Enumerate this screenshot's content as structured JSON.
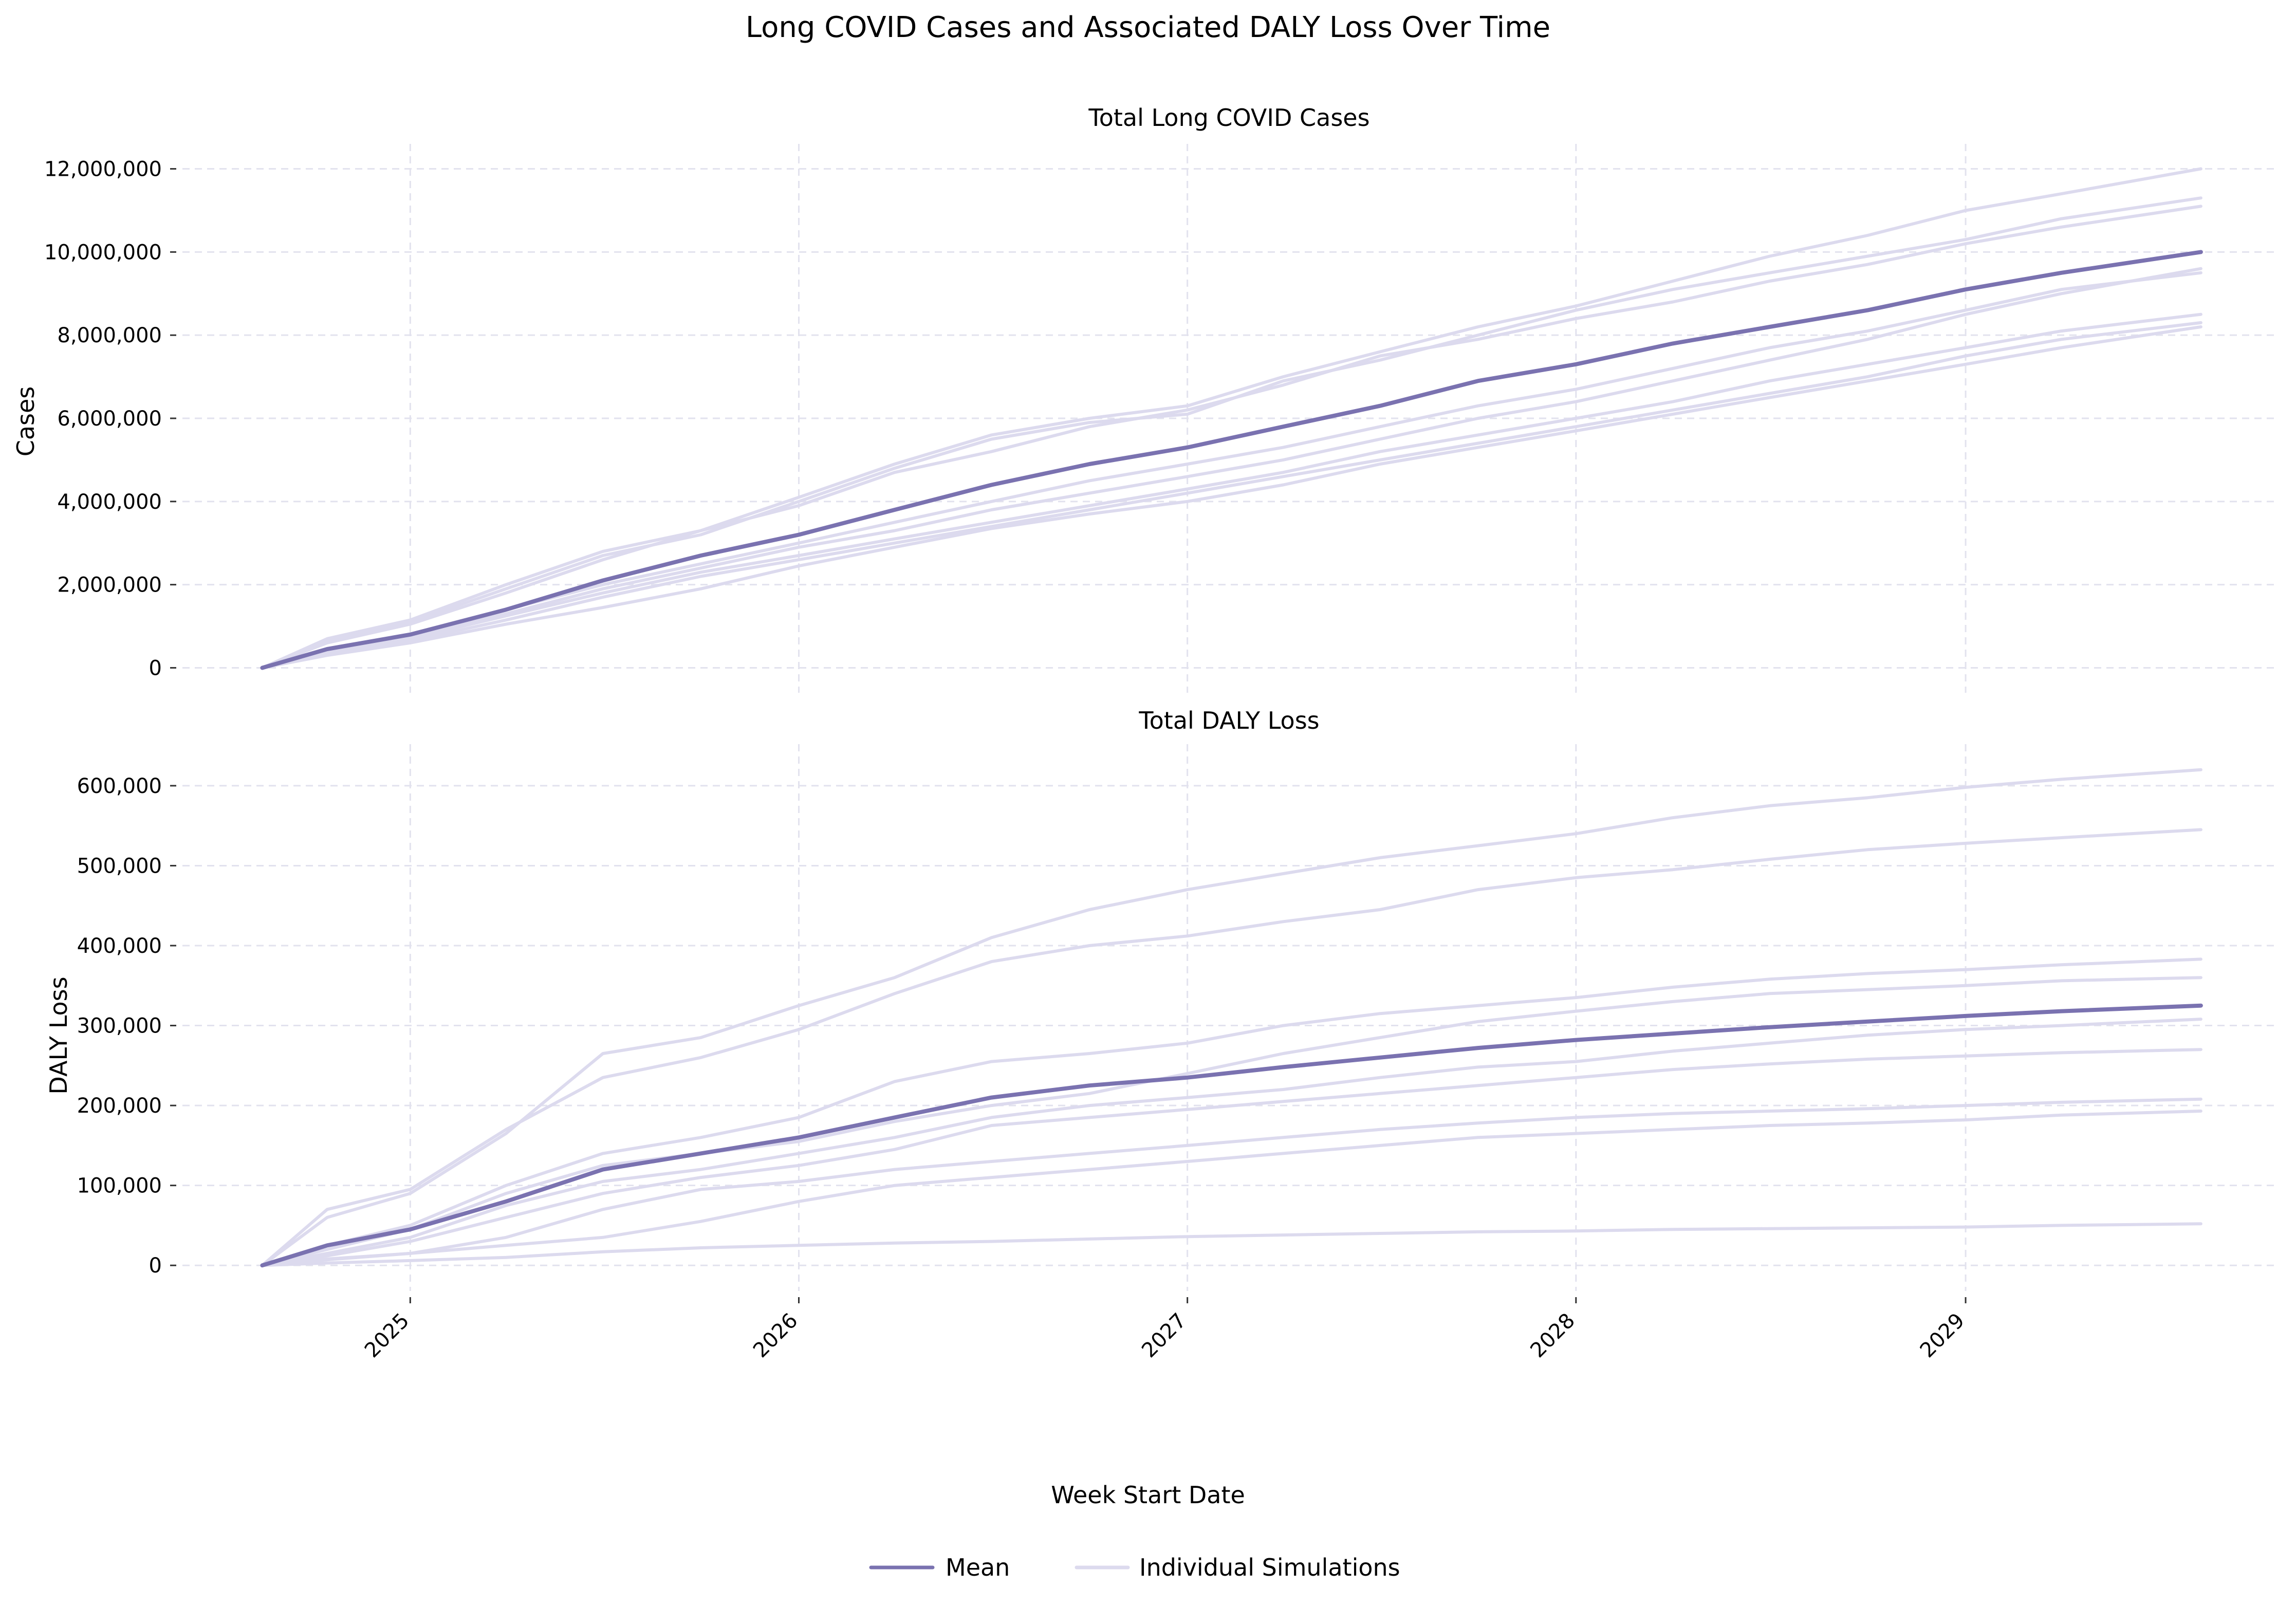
{
  "figure": {
    "title": "Long COVID Cases and Associated DALY Loss Over Time",
    "xlabel": "Week Start Date"
  },
  "colors": {
    "mean": "#7a72b0",
    "simulation": "#dcdaee"
  },
  "legend": {
    "position": "bottom-center",
    "items": [
      "Mean",
      "Individual Simulations"
    ]
  },
  "chart_data": [
    {
      "type": "line",
      "title": "Total Long COVID Cases",
      "ylabel": "Cases",
      "xlim": [
        "2024-06-01",
        "2029-10-20"
      ],
      "ylim": [
        -600000,
        12600000
      ],
      "x_ticks": [
        "2025-01-01",
        "2026-01-01",
        "2027-01-01",
        "2028-01-01",
        "2029-01-01"
      ],
      "x_tick_labels": [
        "2025",
        "2026",
        "2027",
        "2028",
        "2029"
      ],
      "y_ticks": [
        0,
        2000000,
        4000000,
        6000000,
        8000000,
        10000000,
        12000000
      ],
      "y_tick_labels": [
        "0",
        "2,000,000",
        "4,000,000",
        "6,000,000",
        "8,000,000",
        "10,000,000",
        "12,000,000"
      ],
      "grid": true,
      "x": [
        "2024-08-15",
        "2024-10-15",
        "2025-01-01",
        "2025-04-01",
        "2025-07-01",
        "2025-10-01",
        "2026-01-01",
        "2026-04-01",
        "2026-07-01",
        "2026-10-01",
        "2027-01-01",
        "2027-04-01",
        "2027-07-01",
        "2027-10-01",
        "2028-01-01",
        "2028-04-01",
        "2028-07-01",
        "2028-10-01",
        "2029-01-01",
        "2029-04-01",
        "2029-08-10"
      ],
      "series": [
        {
          "name": "Mean",
          "role": "mean",
          "values": [
            0,
            450000,
            800000,
            1400000,
            2100000,
            2700000,
            3200000,
            3800000,
            4400000,
            4900000,
            5300000,
            5800000,
            6300000,
            6900000,
            7300000,
            7800000,
            8200000,
            8600000,
            9100000,
            9500000,
            10000000
          ]
        },
        {
          "role": "simulation",
          "values": [
            0,
            650000,
            1100000,
            1900000,
            2700000,
            3200000,
            4000000,
            4800000,
            5500000,
            5900000,
            6100000,
            6900000,
            7400000,
            8000000,
            8600000,
            9100000,
            9500000,
            9900000,
            10300000,
            10800000,
            11300000
          ]
        },
        {
          "role": "simulation",
          "values": [
            0,
            700000,
            1150000,
            2000000,
            2800000,
            3300000,
            4100000,
            4900000,
            5600000,
            6000000,
            6300000,
            7000000,
            7600000,
            8200000,
            8700000,
            9300000,
            9900000,
            10400000,
            11000000,
            11400000,
            12000000
          ]
        },
        {
          "role": "simulation",
          "values": [
            0,
            600000,
            1050000,
            1800000,
            2600000,
            3300000,
            3900000,
            4700000,
            5200000,
            5800000,
            6200000,
            6800000,
            7500000,
            7900000,
            8400000,
            8800000,
            9300000,
            9700000,
            10200000,
            10600000,
            11100000
          ]
        },
        {
          "role": "simulation",
          "values": [
            0,
            400000,
            750000,
            1300000,
            1900000,
            2400000,
            2900000,
            3300000,
            3800000,
            4200000,
            4600000,
            5000000,
            5500000,
            6000000,
            6400000,
            6900000,
            7400000,
            7900000,
            8500000,
            9000000,
            9600000
          ]
        },
        {
          "role": "simulation",
          "values": [
            0,
            420000,
            800000,
            1400000,
            2000000,
            2500000,
            3000000,
            3500000,
            4000000,
            4500000,
            4900000,
            5300000,
            5800000,
            6300000,
            6700000,
            7200000,
            7700000,
            8100000,
            8600000,
            9100000,
            9500000
          ]
        },
        {
          "role": "simulation",
          "values": [
            0,
            360000,
            700000,
            1250000,
            1800000,
            2300000,
            2700000,
            3100000,
            3500000,
            3900000,
            4300000,
            4700000,
            5200000,
            5600000,
            6000000,
            6400000,
            6900000,
            7300000,
            7700000,
            8100000,
            8500000
          ]
        },
        {
          "role": "simulation",
          "values": [
            0,
            340000,
            650000,
            1150000,
            1700000,
            2200000,
            2600000,
            3000000,
            3400000,
            3800000,
            4200000,
            4600000,
            5000000,
            5400000,
            5800000,
            6200000,
            6600000,
            7000000,
            7500000,
            7900000,
            8300000
          ]
        },
        {
          "role": "simulation",
          "values": [
            0,
            300000,
            600000,
            1050000,
            1450000,
            1900000,
            2450000,
            2900000,
            3350000,
            3700000,
            4000000,
            4400000,
            4900000,
            5300000,
            5700000,
            6100000,
            6500000,
            6900000,
            7300000,
            7700000,
            8200000
          ]
        }
      ]
    },
    {
      "type": "line",
      "title": "Total DALY Loss",
      "ylabel": "DALY Loss",
      "xlim": [
        "2024-06-01",
        "2029-10-20"
      ],
      "ylim": [
        -32000,
        652000
      ],
      "x_ticks": [
        "2025-01-01",
        "2026-01-01",
        "2027-01-01",
        "2028-01-01",
        "2029-01-01"
      ],
      "x_tick_labels": [
        "2025",
        "2026",
        "2027",
        "2028",
        "2029"
      ],
      "y_ticks": [
        0,
        100000,
        200000,
        300000,
        400000,
        500000,
        600000
      ],
      "y_tick_labels": [
        "0",
        "100,000",
        "200,000",
        "300,000",
        "400,000",
        "500,000",
        "600,000"
      ],
      "grid": true,
      "x": [
        "2024-08-15",
        "2024-10-15",
        "2025-01-01",
        "2025-04-01",
        "2025-07-01",
        "2025-10-01",
        "2026-01-01",
        "2026-04-01",
        "2026-07-01",
        "2026-10-01",
        "2027-01-01",
        "2027-04-01",
        "2027-07-01",
        "2027-10-01",
        "2028-01-01",
        "2028-04-01",
        "2028-07-01",
        "2028-10-01",
        "2029-01-01",
        "2029-04-01",
        "2029-08-10"
      ],
      "series": [
        {
          "name": "Mean",
          "role": "mean",
          "values": [
            0,
            25000,
            45000,
            80000,
            120000,
            140000,
            160000,
            185000,
            210000,
            225000,
            235000,
            248000,
            260000,
            272000,
            282000,
            290000,
            298000,
            305000,
            312000,
            318000,
            325000
          ]
        },
        {
          "role": "simulation",
          "values": [
            0,
            70000,
            95000,
            170000,
            235000,
            260000,
            295000,
            340000,
            380000,
            400000,
            412000,
            430000,
            445000,
            470000,
            485000,
            495000,
            508000,
            520000,
            528000,
            535000,
            545000
          ]
        },
        {
          "role": "simulation",
          "values": [
            0,
            60000,
            90000,
            165000,
            265000,
            285000,
            325000,
            360000,
            410000,
            445000,
            470000,
            490000,
            510000,
            525000,
            540000,
            560000,
            575000,
            585000,
            598000,
            608000,
            620000
          ]
        },
        {
          "role": "simulation",
          "values": [
            0,
            25000,
            50000,
            100000,
            140000,
            160000,
            185000,
            230000,
            255000,
            265000,
            278000,
            300000,
            315000,
            325000,
            335000,
            348000,
            358000,
            365000,
            370000,
            376000,
            383000
          ]
        },
        {
          "role": "simulation",
          "values": [
            0,
            20000,
            45000,
            90000,
            125000,
            140000,
            155000,
            180000,
            200000,
            215000,
            240000,
            265000,
            285000,
            305000,
            318000,
            330000,
            340000,
            345000,
            350000,
            356000,
            360000
          ]
        },
        {
          "role": "simulation",
          "values": [
            0,
            15000,
            35000,
            75000,
            105000,
            120000,
            140000,
            160000,
            185000,
            200000,
            210000,
            220000,
            235000,
            248000,
            255000,
            268000,
            278000,
            288000,
            295000,
            300000,
            308000
          ]
        },
        {
          "role": "simulation",
          "values": [
            0,
            12000,
            30000,
            60000,
            90000,
            110000,
            125000,
            145000,
            175000,
            185000,
            195000,
            205000,
            215000,
            225000,
            235000,
            245000,
            252000,
            258000,
            262000,
            266000,
            270000
          ]
        },
        {
          "role": "simulation",
          "values": [
            0,
            8000,
            15000,
            35000,
            70000,
            95000,
            105000,
            120000,
            130000,
            140000,
            150000,
            160000,
            170000,
            178000,
            185000,
            190000,
            193000,
            196000,
            200000,
            204000,
            208000
          ]
        },
        {
          "role": "simulation",
          "values": [
            0,
            7000,
            15000,
            25000,
            35000,
            55000,
            80000,
            100000,
            110000,
            120000,
            130000,
            140000,
            150000,
            160000,
            165000,
            170000,
            175000,
            178000,
            182000,
            188000,
            193000
          ]
        },
        {
          "role": "simulation",
          "values": [
            0,
            3000,
            6000,
            10000,
            17000,
            22000,
            25000,
            28000,
            30000,
            33000,
            36000,
            38000,
            40000,
            42000,
            43000,
            45000,
            46000,
            47000,
            48000,
            50000,
            52000
          ]
        }
      ]
    }
  ]
}
